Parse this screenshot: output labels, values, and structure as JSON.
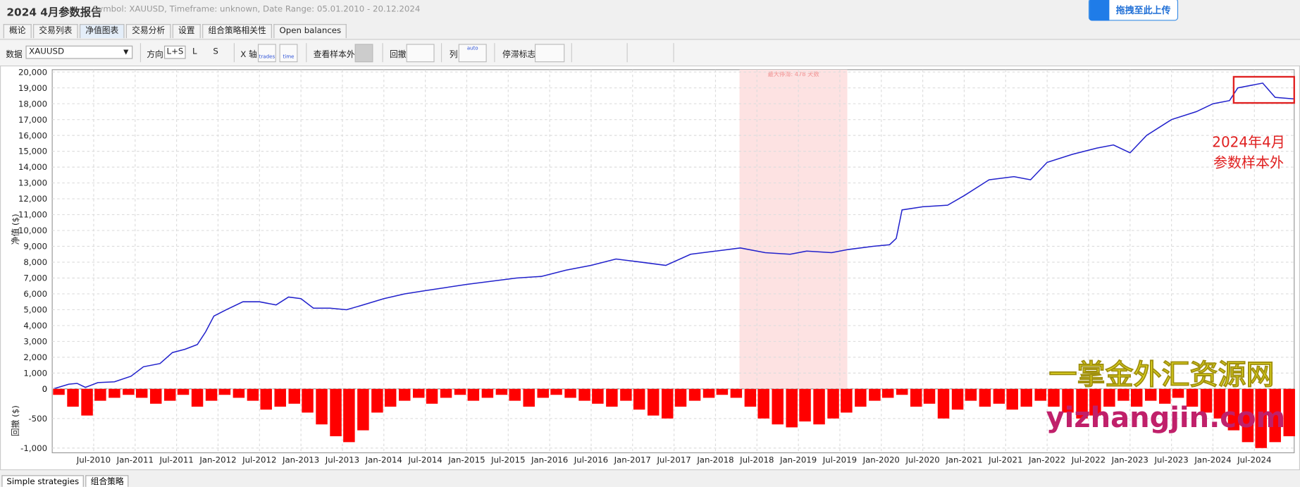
{
  "header": {
    "title": "2024 4月参数报告",
    "subtitle": "Symbol: XAUUSD, Timeframe: unknown, Date Range: 05.01.2010 - 20.12.2024",
    "upload_button": "拖拽至此上传"
  },
  "tabs": [
    "概论",
    "交易列表",
    "净值图表",
    "交易分析",
    "设置",
    "组合策略相关性",
    "Open balances"
  ],
  "toolbar": {
    "data_label": "数据",
    "data_value": "XAUUSD",
    "direction_label": "方向",
    "direction_options": [
      "L+S",
      "L",
      "S"
    ],
    "x_axis_label": "X 轴",
    "x_axis_options": [
      "trades",
      "time"
    ],
    "out_of_sample_label": "查看样本外",
    "drawdown_label": "回撤",
    "columns_label": "列",
    "columns_value": "auto",
    "stagnation_label": "停滞标志"
  },
  "chart_data": [
    {
      "type": "line",
      "y_label": "净值 ($)",
      "color": "#2222cc",
      "grid": true,
      "x": [
        2010.01,
        2010.2,
        2010.3,
        2010.4,
        2010.55,
        2010.75,
        2010.95,
        2011.1,
        2011.3,
        2011.45,
        2011.6,
        2011.75,
        2011.85,
        2011.95,
        2012.1,
        2012.3,
        2012.5,
        2012.7,
        2012.85,
        2013.0,
        2013.15,
        2013.35,
        2013.55,
        2013.75,
        2014.0,
        2014.25,
        2014.5,
        2014.75,
        2015.0,
        2015.3,
        2015.6,
        2015.9,
        2016.2,
        2016.5,
        2016.8,
        2017.1,
        2017.4,
        2017.7,
        2018.0,
        2018.3,
        2018.6,
        2018.9,
        2019.1,
        2019.4,
        2019.6,
        2019.9,
        2020.1,
        2020.18,
        2020.25,
        2020.5,
        2020.8,
        2021.0,
        2021.3,
        2021.6,
        2021.8,
        2022.0,
        2022.3,
        2022.6,
        2022.8,
        2023.0,
        2023.2,
        2023.5,
        2023.8,
        2024.0,
        2024.2,
        2024.3,
        2024.6,
        2024.75,
        2024.98
      ],
      "values": [
        0,
        300,
        350,
        100,
        400,
        450,
        800,
        1400,
        1600,
        2300,
        2500,
        2800,
        3600,
        4600,
        5000,
        5500,
        5500,
        5300,
        5800,
        5700,
        5100,
        5100,
        5000,
        5300,
        5700,
        6000,
        6200,
        6400,
        6600,
        6800,
        7000,
        7100,
        7500,
        7800,
        8200,
        8000,
        7800,
        8500,
        8700,
        8900,
        8600,
        8500,
        8700,
        8600,
        8800,
        9000,
        9100,
        9500,
        11300,
        11500,
        11600,
        12200,
        13200,
        13400,
        13200,
        14300,
        14800,
        15200,
        15400,
        14900,
        16000,
        17000,
        17500,
        18000,
        18200,
        19000,
        19300,
        18400,
        18300
      ],
      "xlim": [
        2010.0,
        2024.98
      ],
      "ylim": [
        0,
        20150
      ],
      "yticks": [
        0,
        {
          "value": 1000,
          "label": "1,000"
        },
        {
          "value": 2000,
          "label": "2,000"
        },
        {
          "value": 3000,
          "label": "3,000"
        },
        {
          "value": 4000,
          "label": "4,000"
        },
        {
          "value": 5000,
          "label": "5,000"
        },
        {
          "value": 6000,
          "label": "6,000"
        },
        {
          "value": 7000,
          "label": "7,000"
        },
        {
          "value": 8000,
          "label": "8,000"
        },
        {
          "value": 9000,
          "label": "9,000"
        },
        {
          "value": 10000,
          "label": "10,000"
        },
        {
          "value": 11000,
          "label": "11,000"
        },
        {
          "value": 12000,
          "label": "12,000"
        },
        {
          "value": 13000,
          "label": "13,000"
        },
        {
          "value": 14000,
          "label": "14,000"
        },
        {
          "value": 15000,
          "label": "15,000"
        },
        {
          "value": 16000,
          "label": "16,000"
        },
        {
          "value": 17000,
          "label": "17,000"
        },
        {
          "value": 18000,
          "label": "18,000"
        },
        {
          "value": 19000,
          "label": "19,000"
        },
        {
          "value": 20000,
          "label": "20,000"
        }
      ],
      "xticks": [
        {
          "value": 2010.5,
          "label": "Jul-2010"
        },
        {
          "value": 2011.0,
          "label": "Jan-2011"
        },
        {
          "value": 2011.5,
          "label": "Jul-2011"
        },
        {
          "value": 2012.0,
          "label": "Jan-2012"
        },
        {
          "value": 2012.5,
          "label": "Jul-2012"
        },
        {
          "value": 2013.0,
          "label": "Jan-2013"
        },
        {
          "value": 2013.5,
          "label": "Jul-2013"
        },
        {
          "value": 2014.0,
          "label": "Jan-2014"
        },
        {
          "value": 2014.5,
          "label": "Jul-2014"
        },
        {
          "value": 2015.0,
          "label": "Jan-2015"
        },
        {
          "value": 2015.5,
          "label": "Jul-2015"
        },
        {
          "value": 2016.0,
          "label": "Jan-2016"
        },
        {
          "value": 2016.5,
          "label": "Jul-2016"
        },
        {
          "value": 2017.0,
          "label": "Jan-2017"
        },
        {
          "value": 2017.5,
          "label": "Jul-2017"
        },
        {
          "value": 2018.0,
          "label": "Jan-2018"
        },
        {
          "value": 2018.5,
          "label": "Jul-2018"
        },
        {
          "value": 2019.0,
          "label": "Jan-2019"
        },
        {
          "value": 2019.5,
          "label": "Jul-2019"
        },
        {
          "value": 2020.0,
          "label": "Jan-2020"
        },
        {
          "value": 2020.5,
          "label": "Jul-2020"
        },
        {
          "value": 2021.0,
          "label": "Jan-2021"
        },
        {
          "value": 2021.5,
          "label": "Jul-2021"
        },
        {
          "value": 2022.0,
          "label": "Jan-2022"
        },
        {
          "value": 2022.5,
          "label": "Jul-2022"
        },
        {
          "value": 2023.0,
          "label": "Jan-2023"
        },
        {
          "value": 2023.5,
          "label": "Jul-2023"
        },
        {
          "value": 2024.0,
          "label": "Jan-2024"
        },
        {
          "value": 2024.5,
          "label": "Jul-2024"
        }
      ],
      "highlight": {
        "x": [
          2018.29,
          2019.59
        ],
        "label": "最大停滞: 478 天数",
        "color": "#fde2e2"
      },
      "box": {
        "x": [
          2024.25,
          2024.98
        ],
        "y": [
          18050,
          19700
        ],
        "color": "#e02020"
      },
      "annotation": [
        "2024年4月",
        "参数样本外"
      ]
    },
    {
      "type": "bar",
      "y_label": "回撤 ($)",
      "color": "#ff0000",
      "grid": true,
      "x": [
        2010.08,
        2010.25,
        2010.42,
        2010.58,
        2010.75,
        2010.92,
        2011.08,
        2011.25,
        2011.42,
        2011.58,
        2011.75,
        2011.92,
        2012.08,
        2012.25,
        2012.42,
        2012.58,
        2012.75,
        2012.92,
        2013.08,
        2013.25,
        2013.42,
        2013.58,
        2013.75,
        2013.92,
        2014.08,
        2014.25,
        2014.42,
        2014.58,
        2014.75,
        2014.92,
        2015.08,
        2015.25,
        2015.42,
        2015.58,
        2015.75,
        2015.92,
        2016.08,
        2016.25,
        2016.42,
        2016.58,
        2016.75,
        2016.92,
        2017.08,
        2017.25,
        2017.42,
        2017.58,
        2017.75,
        2017.92,
        2018.08,
        2018.25,
        2018.42,
        2018.58,
        2018.75,
        2018.92,
        2019.08,
        2019.25,
        2019.42,
        2019.58,
        2019.75,
        2019.92,
        2020.08,
        2020.25,
        2020.42,
        2020.58,
        2020.75,
        2020.92,
        2021.08,
        2021.25,
        2021.42,
        2021.58,
        2021.75,
        2021.92,
        2022.08,
        2022.25,
        2022.42,
        2022.58,
        2022.75,
        2022.92,
        2023.08,
        2023.25,
        2023.42,
        2023.58,
        2023.75,
        2023.92,
        2024.08,
        2024.25,
        2024.42,
        2024.58,
        2024.75,
        2024.92
      ],
      "values": [
        -100,
        -300,
        -450,
        -200,
        -150,
        -100,
        -150,
        -250,
        -200,
        -100,
        -300,
        -200,
        -100,
        -150,
        -200,
        -350,
        -300,
        -250,
        -400,
        -600,
        -800,
        -900,
        -700,
        -400,
        -300,
        -200,
        -150,
        -250,
        -150,
        -100,
        -200,
        -150,
        -100,
        -200,
        -300,
        -150,
        -100,
        -150,
        -200,
        -250,
        -300,
        -200,
        -350,
        -450,
        -500,
        -300,
        -200,
        -150,
        -100,
        -150,
        -300,
        -500,
        -600,
        -650,
        -550,
        -600,
        -500,
        -400,
        -300,
        -200,
        -150,
        -100,
        -300,
        -250,
        -500,
        -350,
        -200,
        -300,
        -250,
        -350,
        -300,
        -200,
        -300,
        -400,
        -500,
        -450,
        -300,
        -200,
        -300,
        -200,
        -250,
        -150,
        -300,
        -400,
        -500,
        -700,
        -900,
        -1000,
        -900,
        -800
      ],
      "xlim": [
        2010.0,
        2024.98
      ],
      "ylim": [
        -1080,
        0
      ],
      "yticks": [
        0,
        -500,
        {
          "value": -1000,
          "label": "-1,000"
        }
      ]
    }
  ],
  "watermark": [
    "一掌金外汇资源网",
    "yizhangjin.com"
  ],
  "bottom_tabs": [
    "Simple strategies",
    "组合策略"
  ]
}
